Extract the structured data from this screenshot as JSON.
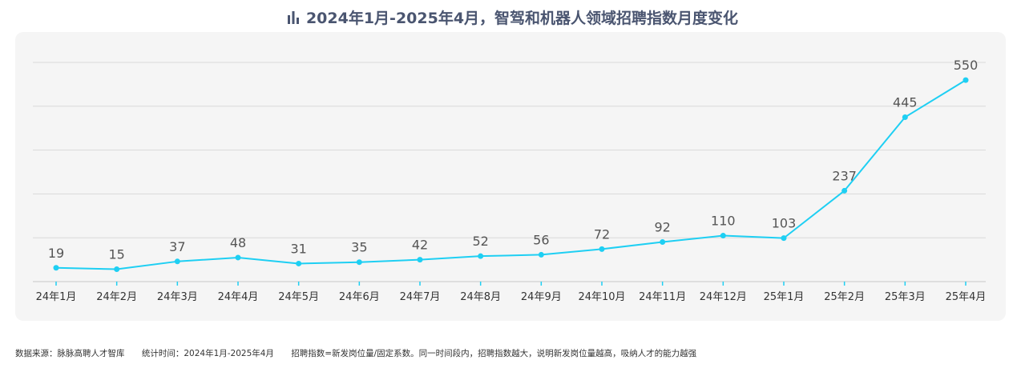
{
  "title": "2024年1月-2025年4月，智驾和机器人领域招聘指数月度变化",
  "footer": {
    "source": "数据来源：脉脉高聘人才智库",
    "period": "统计时间：2024年1月-2025年4月",
    "note": "招聘指数=新发岗位量/固定系数。同一时间段内，招聘指数越大，说明新发岗位量越高，吸纳人才的能力越强"
  },
  "chart_data": {
    "type": "line",
    "categories": [
      "24年1月",
      "24年2月",
      "24年3月",
      "24年4月",
      "24年5月",
      "24年6月",
      "24年7月",
      "24年8月",
      "24年9月",
      "24年10月",
      "24年11月",
      "24年12月",
      "25年1月",
      "25年2月",
      "25年3月",
      "25年4月"
    ],
    "series": [
      {
        "values": [
          19,
          15,
          37,
          48,
          31,
          35,
          42,
          52,
          56,
          72,
          92,
          110,
          103,
          237,
          445,
          550
        ]
      }
    ],
    "ylim": [
      -20,
      600
    ],
    "grid": true,
    "colors": {
      "line": "#1ecff3",
      "grid": "#d9d9d9",
      "label": "#555555",
      "title": "#4a5570"
    }
  }
}
